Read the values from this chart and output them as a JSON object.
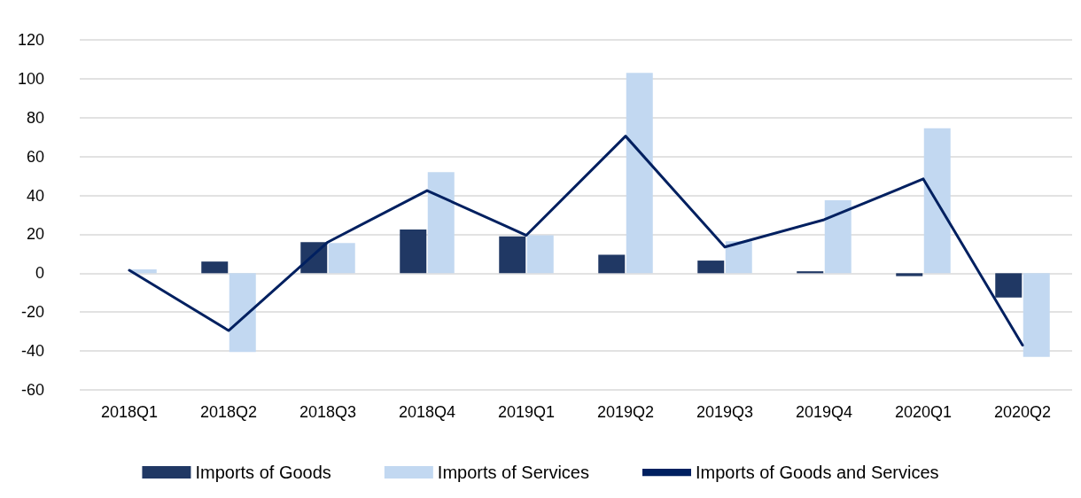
{
  "chart_data": {
    "type": "bar",
    "categories": [
      "2018Q1",
      "2018Q2",
      "2018Q3",
      "2018Q4",
      "2019Q1",
      "2019Q2",
      "2019Q3",
      "2019Q4",
      "2020Q1",
      "2020Q2"
    ],
    "series": [
      {
        "name": "Imports of Goods",
        "color": "#203864",
        "values": [
          0,
          6,
          16,
          22.5,
          19,
          9.5,
          6.5,
          1,
          -1.5,
          -12.5
        ]
      },
      {
        "name": "Imports of Services",
        "color": "#c2d8f1",
        "values": [
          2,
          -40.5,
          15.5,
          52,
          19.5,
          103,
          16.5,
          37.5,
          74.5,
          -43
        ]
      },
      {
        "name": "Imports of Goods and Services",
        "type": "line",
        "color": "#002060",
        "values": [
          1.5,
          -29.5,
          16,
          42.5,
          19.5,
          70.5,
          13.5,
          27.5,
          48.5,
          -37
        ]
      }
    ],
    "ylim": [
      -60,
      120
    ],
    "yticks": [
      -60,
      -40,
      -20,
      0,
      20,
      40,
      60,
      80,
      100,
      120
    ],
    "grid": "y",
    "legend": "bottom",
    "marker": "none",
    "line_style": "solid"
  }
}
